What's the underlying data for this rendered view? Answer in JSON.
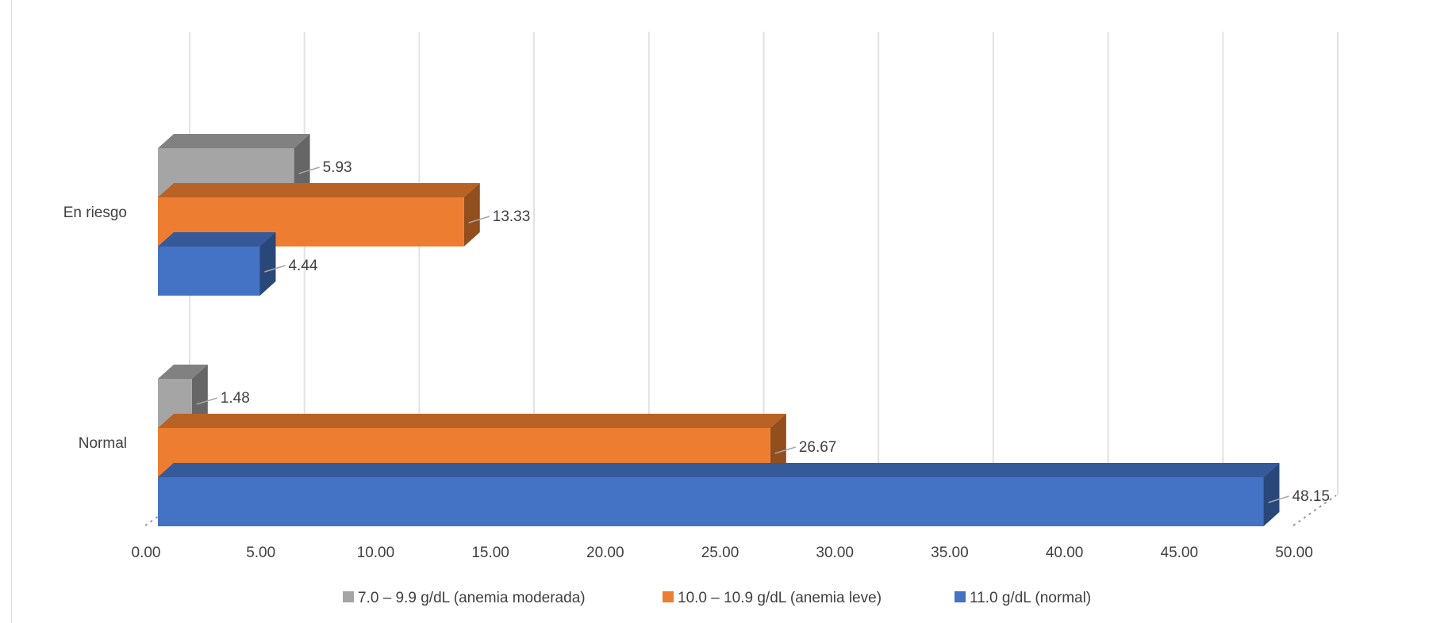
{
  "chart_data": {
    "type": "bar",
    "orientation": "horizontal",
    "style": "3d-clustered",
    "categories": [
      "En riesgo",
      "Normal"
    ],
    "series": [
      {
        "name": "7.0 – 9.9 g/dL (anemia moderada)",
        "color": "#A5A5A5",
        "values": [
          5.93,
          1.48
        ],
        "labels": [
          "5.93",
          "1.48"
        ]
      },
      {
        "name": "10.0 – 10.9 g/dL (anemia leve)",
        "color": "#ED7D31",
        "values": [
          13.33,
          26.67
        ],
        "labels": [
          "13.33",
          "26.67"
        ]
      },
      {
        "name": "11.0 g/dL (normal)",
        "color": "#4472C4",
        "values": [
          4.44,
          48.15
        ],
        "labels": [
          "4.44",
          "48.15"
        ]
      }
    ],
    "xlim": [
      0,
      50
    ],
    "ticks": [
      "0.00",
      "5.00",
      "10.00",
      "15.00",
      "20.00",
      "25.00",
      "30.00",
      "35.00",
      "40.00",
      "45.00",
      "50.00"
    ],
    "grid": true,
    "legend": "bottom"
  }
}
